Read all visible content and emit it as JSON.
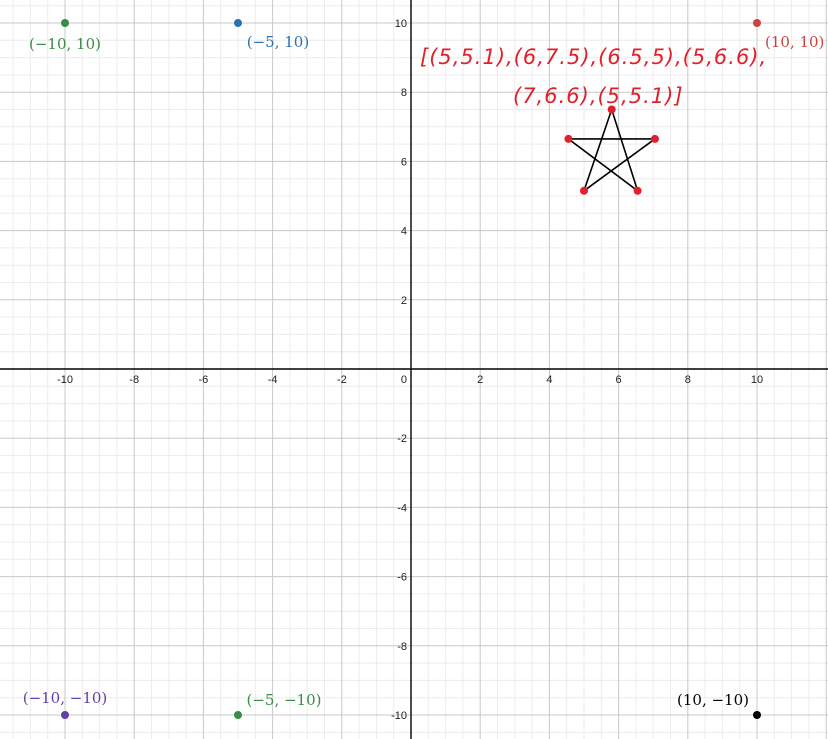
{
  "chart_data": {
    "type": "scatter",
    "grid": true,
    "xlim": [
      -12,
      12
    ],
    "ylim": [
      -10.6,
      10.6
    ],
    "x_ticks": [
      "-10",
      "-8",
      "-6",
      "-4",
      "-2",
      "0",
      "2",
      "4",
      "6",
      "8",
      "10"
    ],
    "y_ticks": [
      "-10",
      "-8",
      "-6",
      "-4",
      "-2",
      "2",
      "4",
      "6",
      "8",
      "10"
    ],
    "labeled_points": [
      {
        "x": -10,
        "y": 10,
        "label": "(−10, 10)",
        "color": "#388c46"
      },
      {
        "x": -5,
        "y": 10,
        "label": "(−5, 10)",
        "color": "#2d70b3"
      },
      {
        "x": 10,
        "y": 10,
        "label": "(10, 10)",
        "color": "#c74440"
      },
      {
        "x": -10,
        "y": -10,
        "label": "(−10, −10)",
        "color": "#6042a6"
      },
      {
        "x": -5,
        "y": -10,
        "label": "(−5, −10)",
        "color": "#388c46"
      },
      {
        "x": 10,
        "y": -10,
        "label": "(10, −10)",
        "color": "#000000"
      }
    ],
    "star_polyline": {
      "color_line": "#000000",
      "color_points": "#e0202a",
      "points": [
        [
          5.0,
          5.15
        ],
        [
          5.8,
          7.5
        ],
        [
          6.55,
          5.15
        ],
        [
          4.55,
          6.65
        ],
        [
          7.05,
          6.65
        ],
        [
          5.0,
          5.15
        ]
      ]
    },
    "handwritten_annotation": {
      "color": "#e0202a",
      "lines": [
        "[(5,5.1),(6,7.5),(6.5,5),(5,6.6),",
        "(7,6.6),(5,5.1)]"
      ]
    }
  },
  "colors": {
    "minor_grid": "#ececec",
    "major_grid": "#c8c8c8",
    "axis": "#000000"
  }
}
